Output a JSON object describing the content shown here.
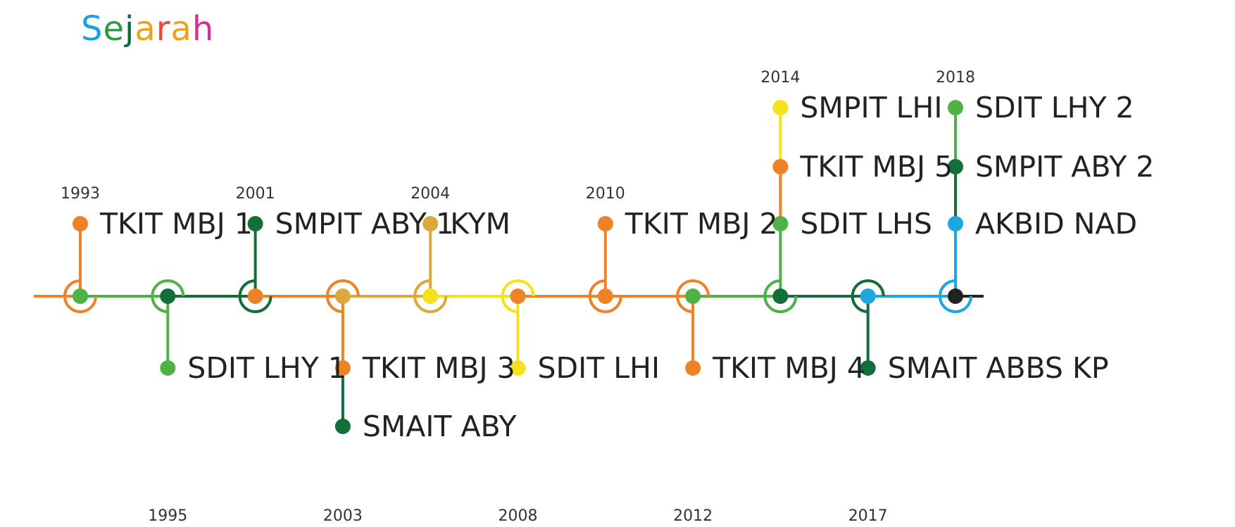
{
  "title": {
    "text": "Sejarah",
    "letter_colors": [
      "#1aa0e0",
      "#2f9a46",
      "#0a6b3c",
      "#f0a11c",
      "#e84a32",
      "#f0a11c",
      "#d6308a"
    ]
  },
  "colors": {
    "orange": "#ee8226",
    "light_green": "#4fb246",
    "dark_green": "#136e3a",
    "gold": "#dba939",
    "yellow": "#f6e21c",
    "blue": "#1da6e0",
    "black": "#222222"
  },
  "milestones": [
    {
      "year": "1993",
      "side": "top",
      "ring": "orange",
      "dot": "light_green",
      "items": [
        {
          "label": "TKIT MBJ 1",
          "color": "orange"
        }
      ]
    },
    {
      "year": "1995",
      "side": "bottom",
      "ring": "light_green",
      "dot": "dark_green",
      "items": [
        {
          "label": "SDIT LHY 1",
          "color": "light_green"
        }
      ]
    },
    {
      "year": "2001",
      "side": "top",
      "ring": "dark_green",
      "dot": "orange",
      "items": [
        {
          "label": "SMPIT ABY 1",
          "color": "dark_green"
        }
      ]
    },
    {
      "year": "2003",
      "side": "bottom",
      "ring": "orange",
      "dot": "gold",
      "items": [
        {
          "label": "TKIT MBJ 3",
          "color": "orange"
        },
        {
          "label": "SMAIT ABY",
          "color": "dark_green"
        }
      ]
    },
    {
      "year": "2004",
      "side": "top",
      "ring": "gold",
      "dot": "yellow",
      "items": [
        {
          "label": "KYM",
          "color": "gold"
        }
      ]
    },
    {
      "year": "2008",
      "side": "bottom",
      "ring": "yellow",
      "dot": "orange",
      "items": [
        {
          "label": "SDIT LHI",
          "color": "yellow"
        }
      ]
    },
    {
      "year": "2010",
      "side": "top",
      "ring": "orange",
      "dot": "orange",
      "items": [
        {
          "label": "TKIT MBJ 2",
          "color": "orange"
        }
      ]
    },
    {
      "year": "2012",
      "side": "bottom",
      "ring": "orange",
      "dot": "light_green",
      "items": [
        {
          "label": "TKIT MBJ 4",
          "color": "orange"
        }
      ]
    },
    {
      "year": "2014",
      "side": "top",
      "ring": "light_green",
      "dot": "dark_green",
      "items": [
        {
          "label": "SDIT LHS",
          "color": "light_green"
        },
        {
          "label": "TKIT MBJ 5",
          "color": "orange"
        },
        {
          "label": "SMPIT LHI",
          "color": "yellow"
        }
      ]
    },
    {
      "year": "2017",
      "side": "bottom",
      "ring": "dark_green",
      "dot": "blue",
      "items": [
        {
          "label": "SMAIT ABBS KP",
          "color": "dark_green"
        }
      ]
    },
    {
      "year": "2018",
      "side": "top",
      "ring": "blue",
      "dot": "black",
      "items": [
        {
          "label": "AKBID NAD",
          "color": "blue"
        },
        {
          "label": "SMPIT ABY 2",
          "color": "dark_green"
        },
        {
          "label": "SDIT LHY 2",
          "color": "light_green"
        }
      ]
    }
  ],
  "segments": [
    "orange",
    "light_green",
    "dark_green",
    "orange",
    "gold",
    "yellow",
    "orange",
    "orange",
    "light_green",
    "dark_green",
    "blue",
    "black"
  ]
}
